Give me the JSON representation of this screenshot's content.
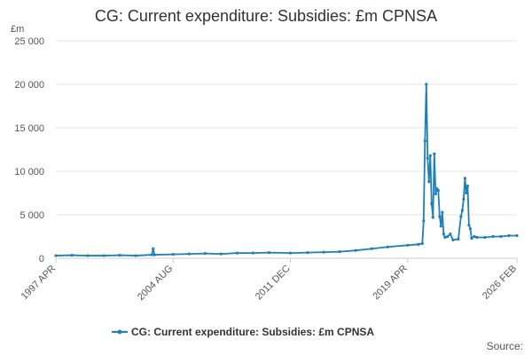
{
  "chart_data": {
    "type": "line",
    "title": "CG: Current expenditure: Subsidies: £m CPNSA",
    "y_unit": "£m",
    "source": "Source:",
    "x": [
      "1997 APR",
      "1998 APR",
      "1999 APR",
      "2000 APR",
      "2001 APR",
      "2002 APR",
      "2003 APR",
      "2003 MAY",
      "2003 JUN",
      "2004 AUG",
      "2005 AUG",
      "2006 AUG",
      "2007 AUG",
      "2008 AUG",
      "2009 AUG",
      "2010 AUG",
      "2011 DEC",
      "2013 JAN",
      "2014 JAN",
      "2015 JAN",
      "2016 JAN",
      "2017 JAN",
      "2018 JAN",
      "2019 APR",
      "2019 DEC",
      "2020 MAR",
      "2020 APR",
      "2020 MAY",
      "2020 JUN",
      "2020 JUL",
      "2020 AUG",
      "2020 SEP",
      "2020 OCT",
      "2020 NOV",
      "2020 DEC",
      "2021 JAN",
      "2021 FEB",
      "2021 MAR",
      "2021 APR",
      "2021 MAY",
      "2021 JUN",
      "2021 JUL",
      "2021 AUG",
      "2021 OCT",
      "2021 DEC",
      "2022 FEB",
      "2022 JUN",
      "2022 AUG",
      "2022 SEP",
      "2022 OCT",
      "2022 NOV",
      "2022 DEC",
      "2023 JAN",
      "2023 FEB",
      "2023 MAR",
      "2023 APR",
      "2023 JUN",
      "2023 AUG",
      "2024 FEB",
      "2024 AUG",
      "2025 FEB",
      "2025 AUG",
      "2026 FEB"
    ],
    "series": [
      {
        "name": "CG: Current expenditure: Subsidies: £m CPNSA",
        "color": "#1f7fb8",
        "values": [
          300,
          350,
          300,
          300,
          350,
          300,
          400,
          1100,
          400,
          450,
          500,
          550,
          500,
          600,
          600,
          650,
          600,
          650,
          700,
          750,
          900,
          1100,
          1300,
          1500,
          1600,
          1700,
          4300,
          13500,
          20000,
          11500,
          8800,
          11800,
          6300,
          4700,
          12000,
          7400,
          8000,
          7800,
          4800,
          3700,
          5300,
          2800,
          2400,
          2500,
          2800,
          2100,
          2200,
          4800,
          5500,
          6800,
          9200,
          7500,
          8300,
          3800,
          3400,
          2300,
          2500,
          2400,
          2400,
          2500,
          2500,
          2600,
          2600
        ]
      }
    ],
    "ylim": [
      0,
      25000
    ],
    "yticks": [
      0,
      {
        "value": 5000,
        "label": "5 000"
      },
      {
        "value": 10000,
        "label": "10 000"
      },
      {
        "value": 15000,
        "label": "15 000"
      },
      {
        "value": 20000,
        "label": "20 000"
      },
      {
        "value": 25000,
        "label": "25 000"
      }
    ],
    "xticks": [
      "1997 APR",
      "2004 AUG",
      "2011 DEC",
      "2019 APR",
      "2026 FEB"
    ],
    "grid": true
  }
}
